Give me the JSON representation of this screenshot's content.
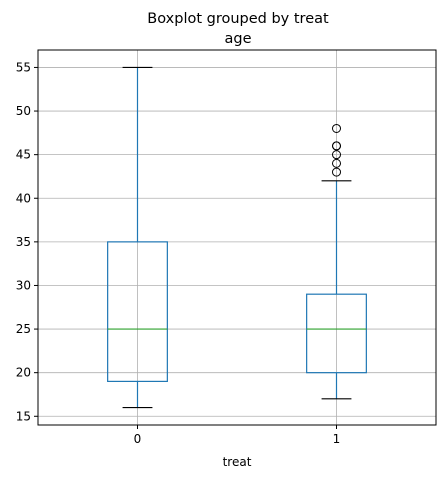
{
  "chart_data": {
    "type": "box",
    "suptitle": "Boxplot grouped by treat",
    "title": "age",
    "xlabel": "treat",
    "ylabel": "",
    "categories": [
      "0",
      "1"
    ],
    "ylim": [
      14,
      57
    ],
    "yticks": [
      15,
      20,
      25,
      30,
      35,
      40,
      45,
      50,
      55
    ],
    "grid": true,
    "boxes": [
      {
        "category": "0",
        "whisker_low": 16,
        "q1": 19,
        "median": 25,
        "q3": 35,
        "whisker_high": 55,
        "outliers": []
      },
      {
        "category": "1",
        "whisker_low": 17,
        "q1": 20,
        "median": 25,
        "q3": 29,
        "whisker_high": 42,
        "outliers": [
          43,
          44,
          45,
          46,
          46,
          48
        ]
      }
    ],
    "colors": {
      "box": "#1f77b4",
      "median": "#2ca02c",
      "cap": "#000000",
      "grid": "#b0b0b0",
      "outlier": "#000000"
    }
  }
}
